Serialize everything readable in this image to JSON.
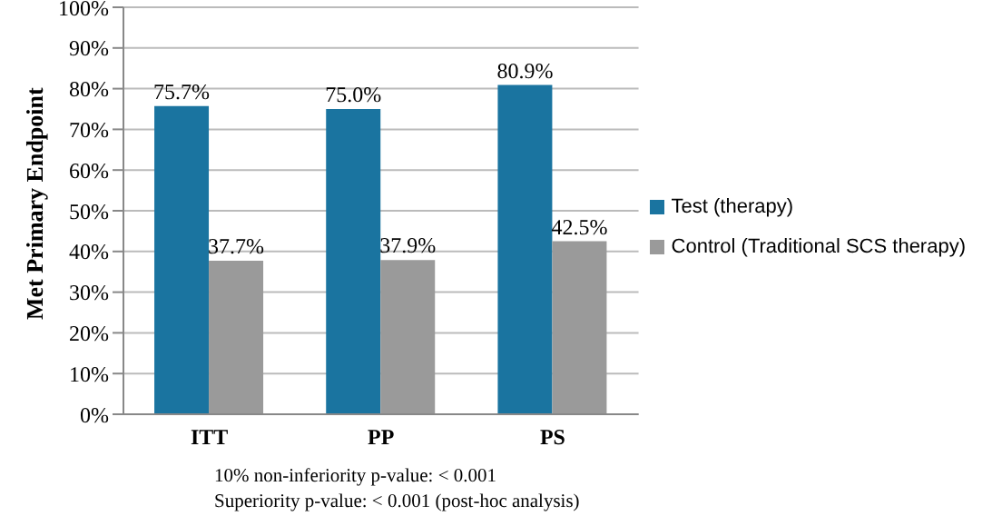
{
  "chart_data": {
    "type": "bar",
    "ylabel": "Met Primary Endpoint",
    "categories": [
      "ITT",
      "PP",
      "PS"
    ],
    "series": [
      {
        "name": "Test (therapy)",
        "color": "#1a74a0",
        "values": [
          75.7,
          75.0,
          80.9
        ],
        "value_labels": [
          "75.7%",
          "75.0%",
          "80.9%"
        ]
      },
      {
        "name": "Control (Traditional SCS therapy)",
        "color": "#9a9a9a",
        "values": [
          37.7,
          37.9,
          42.5
        ],
        "value_labels": [
          "37.7%",
          "37.9%",
          "42.5%"
        ]
      }
    ],
    "ylim": [
      0,
      100
    ],
    "yticks": [
      {
        "value": 0,
        "label": "0%"
      },
      {
        "value": 10,
        "label": "10%"
      },
      {
        "value": 20,
        "label": "20%"
      },
      {
        "value": 30,
        "label": "30%"
      },
      {
        "value": 40,
        "label": "40%"
      },
      {
        "value": 50,
        "label": "50%"
      },
      {
        "value": 60,
        "label": "60%"
      },
      {
        "value": 70,
        "label": "70%"
      },
      {
        "value": 80,
        "label": "80%"
      },
      {
        "value": 90,
        "label": "90%"
      },
      {
        "value": 100,
        "label": "100%"
      }
    ],
    "grid": "y",
    "legend": "right",
    "annotations": [
      "10% non-inferiority p-value: < 0.001",
      "Superiority p-value: < 0.001 (post-hoc analysis)"
    ]
  }
}
